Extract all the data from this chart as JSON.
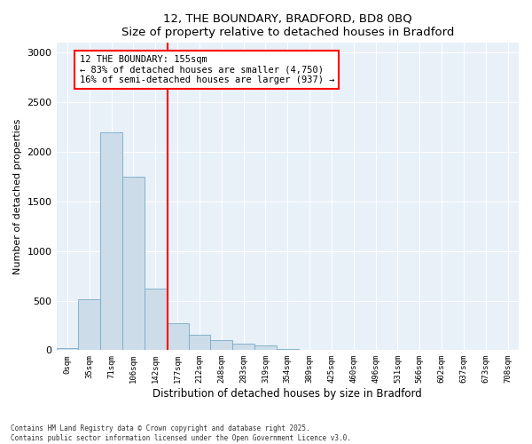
{
  "title1": "12, THE BOUNDARY, BRADFORD, BD8 0BQ",
  "title2": "Size of property relative to detached houses in Bradford",
  "xlabel": "Distribution of detached houses by size in Bradford",
  "ylabel": "Number of detached properties",
  "categories": [
    "0sqm",
    "35sqm",
    "71sqm",
    "106sqm",
    "142sqm",
    "177sqm",
    "212sqm",
    "248sqm",
    "283sqm",
    "319sqm",
    "354sqm",
    "389sqm",
    "425sqm",
    "460sqm",
    "496sqm",
    "531sqm",
    "566sqm",
    "602sqm",
    "637sqm",
    "673sqm",
    "708sqm"
  ],
  "values": [
    25,
    510,
    2200,
    1750,
    620,
    270,
    155,
    100,
    65,
    45,
    15,
    5,
    2,
    1,
    0,
    0,
    0,
    0,
    0,
    0,
    0
  ],
  "bar_color": "#ccdce8",
  "bar_edge_color": "#7aaac8",
  "subject_line_color": "red",
  "annotation_title": "12 THE BOUNDARY: 155sqm",
  "annotation_line1": "← 83% of detached houses are smaller (4,750)",
  "annotation_line2": "16% of semi-detached houses are larger (937) →",
  "footnote1": "Contains HM Land Registry data © Crown copyright and database right 2025.",
  "footnote2": "Contains public sector information licensed under the Open Government Licence v3.0.",
  "ylim": [
    0,
    3100
  ],
  "yticks": [
    0,
    500,
    1000,
    1500,
    2000,
    2500,
    3000
  ],
  "bg_color": "#e8f0f8",
  "grid_color": "white",
  "figsize": [
    6.0,
    5.0
  ],
  "dpi": 100
}
